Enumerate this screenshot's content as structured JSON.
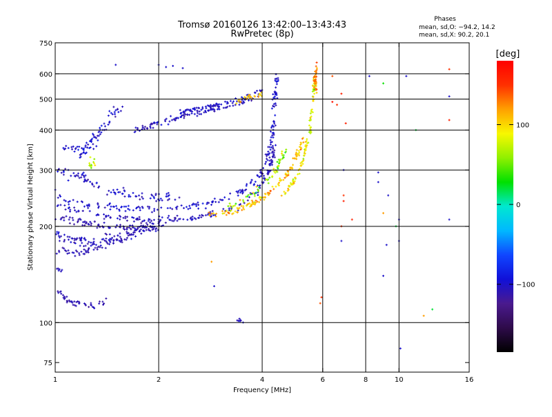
{
  "header": {
    "title_line1": "Tromsø 20160126 13:42:00–13:43:43",
    "title_line2": "RwPretec (8p)",
    "phase_title": "Phases",
    "phase_line1": "mean, sd,O: −94.2, 14.2",
    "phase_line2": "mean, sd,X:  90.2, 20.1"
  },
  "colorbar": {
    "unit_label": "[deg]",
    "range": [
      -185,
      180
    ],
    "ticks": [
      {
        "value": 100,
        "label": "100"
      },
      {
        "value": 0,
        "label": "0"
      },
      {
        "value": -100,
        "label": "−100"
      }
    ],
    "colors": [
      "#000000",
      "#2e0b4a",
      "#4a1a8e",
      "#1010d8",
      "#1046ff",
      "#00b8ff",
      "#00e8d0",
      "#00e000",
      "#90f000",
      "#f8f800",
      "#ffa000",
      "#ff3000",
      "#ff0000"
    ]
  },
  "chart_data": {
    "type": "scatter",
    "xlabel": "Frequency [MHz]",
    "ylabel": "Stationary phase Virtual Height [km]",
    "xscale": "log",
    "yscale": "log",
    "xlim": [
      1,
      16
    ],
    "ylim": [
      70,
      750
    ],
    "x_ticks": [
      {
        "value": 1,
        "label": "1"
      },
      {
        "value": 2,
        "label": "2"
      },
      {
        "value": 4,
        "label": "4"
      },
      {
        "value": 6,
        "label": "6"
      },
      {
        "value": 8,
        "label": "8"
      },
      {
        "value": 10,
        "label": "10"
      },
      {
        "value": 16,
        "label": "16"
      }
    ],
    "y_ticks": [
      {
        "value": 75,
        "label": "75"
      },
      {
        "value": 100,
        "label": "100"
      },
      {
        "value": 200,
        "label": "200"
      },
      {
        "value": 300,
        "label": "300"
      },
      {
        "value": 400,
        "label": "400"
      },
      {
        "value": 500,
        "label": "500"
      },
      {
        "value": 600,
        "label": "600"
      },
      {
        "value": 750,
        "label": "750"
      }
    ],
    "grid_x": [
      2,
      4,
      6,
      8,
      10
    ],
    "grid_y": [
      100,
      200,
      300,
      400,
      500,
      600
    ],
    "series": [
      {
        "traces": [
          {
            "points": [
              [
                1.0,
                255
              ],
              [
                1.1,
                240
              ],
              [
                1.3,
                232
              ],
              [
                1.6,
                228
              ],
              [
                2.0,
                226
              ],
              [
                2.5,
                230
              ],
              [
                3.0,
                240
              ],
              [
                3.5,
                258
              ],
              [
                3.9,
                285
              ],
              [
                4.15,
                325
              ],
              [
                4.3,
                390
              ],
              [
                4.35,
                470
              ],
              [
                4.4,
                600
              ]
            ],
            "n": 210,
            "jitter": 0.022,
            "phase": -100,
            "phase_sd": 12
          },
          {
            "points": [
              [
                1.0,
                235
              ],
              [
                1.2,
                222
              ],
              [
                1.5,
                212
              ],
              [
                2.0,
                210
              ],
              [
                2.5,
                212
              ],
              [
                3.0,
                220
              ],
              [
                3.5,
                235
              ],
              [
                3.9,
                260
              ],
              [
                4.2,
                300
              ],
              [
                4.35,
                360
              ]
            ],
            "n": 170,
            "jitter": 0.02,
            "phase": -105,
            "phase_sd": 10
          },
          {
            "points": [
              [
                1.0,
                215
              ],
              [
                1.2,
                205
              ],
              [
                1.5,
                198
              ],
              [
                1.8,
                200
              ],
              [
                2.1,
                204
              ]
            ],
            "n": 90,
            "jitter": 0.02,
            "phase": -110,
            "phase_sd": 10
          },
          {
            "points": [
              [
                1.0,
                190
              ],
              [
                1.1,
                182
              ],
              [
                1.3,
                178
              ],
              [
                1.6,
                188
              ],
              [
                2.0,
                200
              ]
            ],
            "n": 110,
            "jitter": 0.03,
            "phase": -105,
            "phase_sd": 12
          },
          {
            "points": [
              [
                1.02,
                168
              ],
              [
                1.2,
                165
              ],
              [
                1.4,
                175
              ],
              [
                1.7,
                190
              ]
            ],
            "n": 60,
            "jitter": 0.02,
            "phase": -110,
            "phase_sd": 10
          },
          {
            "points": [
              [
                1.0,
                300
              ],
              [
                1.2,
                285
              ],
              [
                1.4,
                265
              ],
              [
                1.6,
                252
              ],
              [
                2.0,
                246
              ],
              [
                2.3,
                244
              ]
            ],
            "n": 90,
            "jitter": 0.03,
            "phase": -100,
            "phase_sd": 15
          },
          {
            "points": [
              [
                1.05,
                360
              ],
              [
                1.2,
                340
              ],
              [
                1.35,
                390
              ],
              [
                1.45,
                440
              ],
              [
                1.55,
                470
              ]
            ],
            "n": 80,
            "jitter": 0.04,
            "phase": -100,
            "phase_sd": 14
          },
          {
            "points": [
              [
                1.7,
                400
              ],
              [
                2.0,
                420
              ],
              [
                2.4,
                445
              ],
              [
                3.0,
                470
              ],
              [
                3.6,
                495
              ],
              [
                4.0,
                530
              ]
            ],
            "n": 120,
            "jitter": 0.02,
            "phase": -105,
            "phase_sd": 12
          },
          {
            "points": [
              [
                1.03,
                125
              ],
              [
                1.1,
                115
              ],
              [
                1.3,
                113
              ],
              [
                1.4,
                116
              ]
            ],
            "n": 45,
            "jitter": 0.02,
            "phase": -110,
            "phase_sd": 8
          },
          {
            "points": [
              [
                2.3,
                455
              ],
              [
                2.8,
                475
              ],
              [
                3.3,
                495
              ],
              [
                3.7,
                510
              ]
            ],
            "n": 60,
            "jitter": 0.015,
            "phase": -100,
            "phase_sd": 12
          },
          {
            "points": [
              [
                3.4,
                102
              ],
              [
                3.5,
                101
              ]
            ],
            "n": 8,
            "jitter": 0.01,
            "phase": -105,
            "phase_sd": 8
          },
          {
            "points": [
              [
                1.0,
                148
              ],
              [
                1.05,
                145
              ]
            ],
            "n": 6,
            "jitter": 0.01,
            "phase": -105,
            "phase_sd": 8
          }
        ]
      },
      {
        "traces": [
          {
            "points": [
              [
                2.8,
                218
              ],
              [
                3.2,
                220
              ],
              [
                3.6,
                230
              ],
              [
                4.0,
                245
              ],
              [
                4.4,
                268
              ],
              [
                4.8,
                300
              ],
              [
                5.1,
                340
              ],
              [
                5.3,
                380
              ]
            ],
            "n": 130,
            "jitter": 0.02,
            "phase": 110,
            "phase_sd": 25
          },
          {
            "points": [
              [
                4.6,
                250
              ],
              [
                5.0,
                280
              ],
              [
                5.3,
                330
              ],
              [
                5.5,
                400
              ],
              [
                5.6,
                480
              ],
              [
                5.7,
                600
              ]
            ],
            "n": 110,
            "jitter": 0.015,
            "phase": 90,
            "phase_sd": 30
          },
          {
            "points": [
              [
                3.2,
                230
              ],
              [
                3.6,
                245
              ],
              [
                4.0,
                265
              ],
              [
                4.4,
                300
              ],
              [
                4.7,
                350
              ]
            ],
            "n": 60,
            "jitter": 0.02,
            "phase": 60,
            "phase_sd": 40
          },
          {
            "points": [
              [
                3.2,
                480
              ],
              [
                3.6,
                505
              ],
              [
                4.0,
                520
              ]
            ],
            "n": 25,
            "jitter": 0.015,
            "phase": 110,
            "phase_sd": 15
          },
          {
            "points": [
              [
                1.25,
                320
              ],
              [
                1.3,
                310
              ]
            ],
            "n": 12,
            "jitter": 0.03,
            "phase": 80,
            "phase_sd": 30
          },
          {
            "points": [
              [
                5.7,
                520
              ],
              [
                5.75,
                640
              ]
            ],
            "n": 30,
            "jitter": 0.015,
            "phase": 130,
            "phase_sd": 20
          }
        ]
      },
      {
        "points": [
          [
            1.5,
            640,
            -100
          ],
          [
            2.0,
            640,
            -100
          ],
          [
            2.1,
            630,
            -100
          ],
          [
            2.2,
            635,
            -100
          ],
          [
            2.35,
            625,
            -100
          ],
          [
            6.4,
            590,
            140
          ],
          [
            6.6,
            480,
            150
          ],
          [
            6.8,
            520,
            160
          ],
          [
            6.9,
            300,
            -100
          ],
          [
            6.9,
            250,
            150
          ],
          [
            7.3,
            210,
            160
          ],
          [
            6.8,
            180,
            -100
          ],
          [
            8.2,
            590,
            -100
          ],
          [
            8.7,
            295,
            -100
          ],
          [
            8.7,
            275,
            -100
          ],
          [
            9.0,
            560,
            30
          ],
          [
            9.0,
            220,
            120
          ],
          [
            9.2,
            175,
            -100
          ],
          [
            9.0,
            140,
            -100
          ],
          [
            10.0,
            180,
            -100
          ],
          [
            10.0,
            210,
            -100
          ],
          [
            9.8,
            200,
            20
          ],
          [
            10.1,
            83,
            -100
          ],
          [
            11.2,
            400,
            20
          ],
          [
            11.8,
            105,
            120
          ],
          [
            12.5,
            110,
            20
          ],
          [
            14.0,
            620,
            150
          ],
          [
            14.0,
            510,
            -100
          ],
          [
            14.0,
            430,
            160
          ],
          [
            14.0,
            210,
            -100
          ],
          [
            5.9,
            115,
            140
          ],
          [
            5.95,
            120,
            150
          ],
          [
            2.85,
            155,
            120
          ],
          [
            2.9,
            130,
            -100
          ],
          [
            6.8,
            200,
            150
          ],
          [
            6.4,
            490,
            170
          ],
          [
            7.0,
            420,
            160
          ],
          [
            10.5,
            590,
            -100
          ],
          [
            9.3,
            250,
            -100
          ],
          [
            6.9,
            240,
            160
          ]
        ]
      }
    ]
  }
}
